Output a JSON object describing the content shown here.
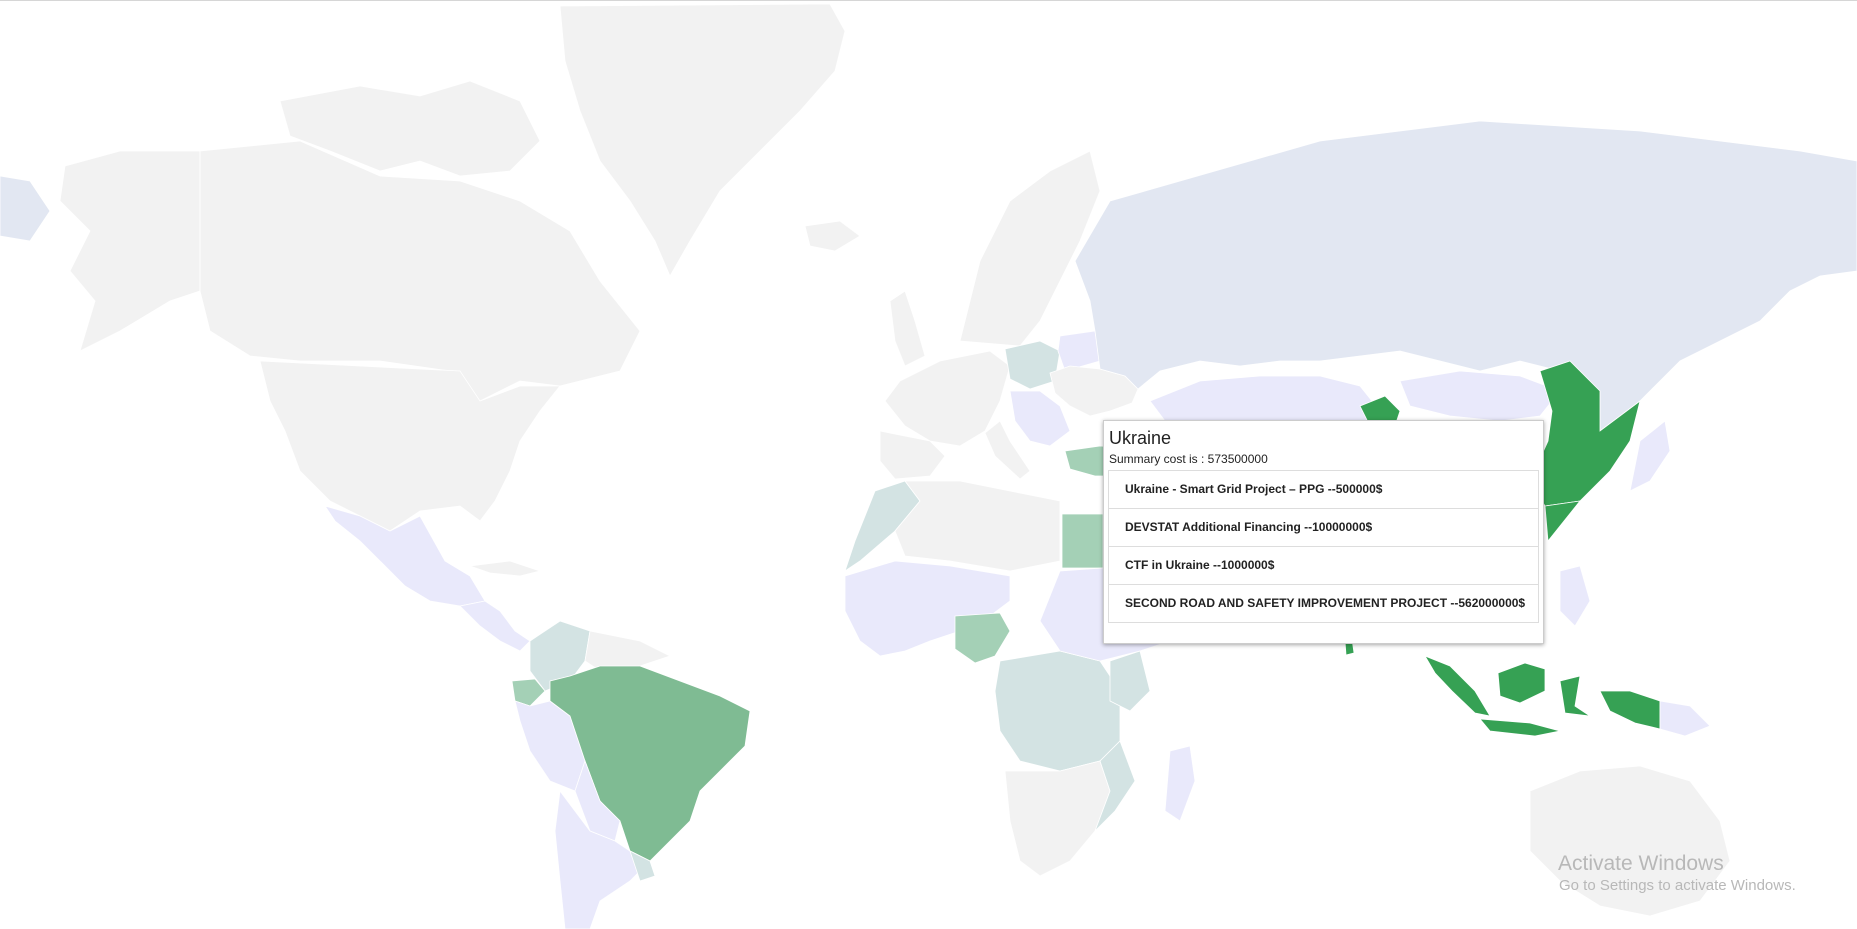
{
  "tooltip": {
    "country": "Ukraine",
    "summary": "Summary cost is : 573500000",
    "projects": [
      "Ukraine - Smart Grid Project – PPG --500000$",
      "DEVSTAT Additional Financing --10000000$",
      "CTF in Ukraine --1000000$",
      "SECOND ROAD AND SAFETY IMPROVEMENT PROJECT --562000000$"
    ]
  },
  "watermark": {
    "title": "Activate Windows",
    "subtitle": "Go to Settings to activate Windows."
  },
  "colors": {
    "ocean": "#ffffff",
    "no_data": "#f2f2f2",
    "low": "#e9e9fb",
    "russia": "#e2e7f2",
    "light_teal": "#d3e3e3",
    "medium": "#a4d0b6",
    "brazil": "#7fbb93",
    "high": "#36a154",
    "highlight_border": "#999999"
  }
}
